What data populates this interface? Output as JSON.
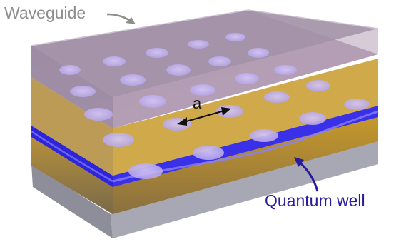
{
  "labels": {
    "waveguide": "Waveguide",
    "quantum_well": "Quantum well",
    "lattice_constant": "a"
  },
  "colors": {
    "waveguide_label": "#8e8e8e",
    "quantum_well_label": "#2a1a9e",
    "glass_top": "#a890a8",
    "glass_side": "#9a9aa8",
    "gold_layer": "#c8962a",
    "quantum_well_layer": "#3a30e8",
    "holes": "#c4b4f0",
    "arrows": "#111111"
  }
}
